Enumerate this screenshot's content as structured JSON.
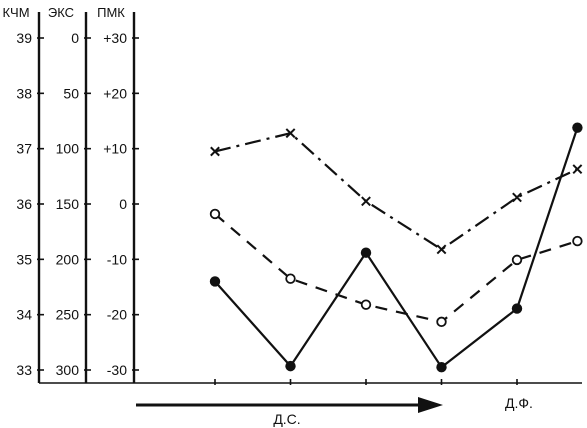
{
  "colors": {
    "ink": "#111111",
    "background": "#ffffff"
  },
  "chart_data": {
    "type": "line",
    "title": "",
    "x_ticks": 5,
    "axes": [
      {
        "id": "kchm",
        "header": "КЧМ",
        "ticks": [
          "39",
          "38",
          "37",
          "36",
          "35",
          "34",
          "33"
        ],
        "ylim": [
          33,
          39
        ]
      },
      {
        "id": "eks",
        "header": "ЭКС",
        "ticks": [
          "0",
          "50",
          "100",
          "150",
          "200",
          "250",
          "300"
        ],
        "ylim": [
          300,
          0
        ]
      },
      {
        "id": "pmk",
        "header": "ПМК",
        "ticks": [
          "+30",
          "+20",
          "+10",
          "0",
          "-10",
          "-20",
          "-30"
        ],
        "ylim": [
          -30,
          30
        ]
      }
    ],
    "series": [
      {
        "axis": "pmk",
        "line_style": "dash-dot",
        "marker": "cross",
        "x": [
          0,
          1,
          2,
          3,
          4,
          4.8
        ],
        "values": [
          9.5,
          12.8,
          0.5,
          -8.2,
          1.2,
          6.3
        ]
      },
      {
        "axis": "pmk",
        "line_style": "dashed",
        "marker": "open-circle",
        "x": [
          0,
          1,
          2,
          3,
          4,
          4.8
        ],
        "values": [
          -1.8,
          -13.5,
          -18.2,
          -21.3,
          -10.1,
          -6.7
        ]
      },
      {
        "axis": "pmk",
        "line_style": "solid",
        "marker": "filled-circle",
        "x": [
          0,
          1,
          2,
          3,
          4,
          4.8
        ],
        "values": [
          -14,
          -29.3,
          -8.8,
          -29.5,
          -18.9,
          13.8
        ]
      }
    ],
    "annotations": [
      {
        "text": "Д.С.",
        "arrow": true
      },
      {
        "text": "Д.Ф."
      }
    ]
  }
}
